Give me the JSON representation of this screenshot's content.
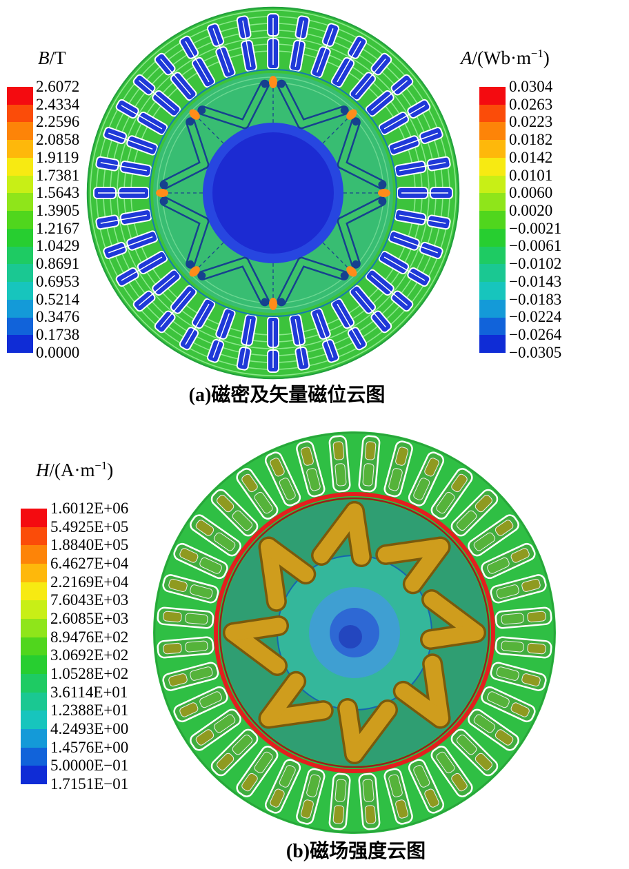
{
  "palette": {
    "bands_top_to_bottom": [
      "#f40b10",
      "#fb4c09",
      "#fd8408",
      "#feb80b",
      "#f7ea12",
      "#c8ef16",
      "#8fe51a",
      "#50d61d",
      "#27ce30",
      "#1ecb63",
      "#1ac892",
      "#17c5bd",
      "#149ad8",
      "#1163da",
      "#0f2cd6"
    ]
  },
  "legends": {
    "b": {
      "symbol": "B",
      "unit_pre": "/T",
      "unit_sup": "",
      "unit_post": "",
      "values": [
        "2.6072",
        "2.4334",
        "2.2596",
        "2.0858",
        "1.9119",
        "1.7381",
        "1.5643",
        "1.3905",
        "1.2167",
        "1.0429",
        "0.8691",
        "0.6953",
        "0.5214",
        "0.3476",
        "0.1738",
        "0.0000"
      ]
    },
    "a": {
      "symbol": "A",
      "unit_pre": "/(Wb·m",
      "unit_sup": "−1",
      "unit_post": ")",
      "values": [
        "0.0304",
        "0.0263",
        "0.0223",
        "0.0182",
        "0.0142",
        "0.0101",
        "0.0060",
        "0.0020",
        "−0.0021",
        "−0.0061",
        "−0.0102",
        "−0.0143",
        "−0.0183",
        "−0.0224",
        "−0.0264",
        "−0.0305"
      ]
    },
    "h": {
      "symbol": "H",
      "unit_pre": "/(A·m",
      "unit_sup": "−1",
      "unit_post": ")",
      "values": [
        "1.6012E+06",
        "5.4925E+05",
        "1.8840E+05",
        "6.4627E+04",
        "2.2169E+04",
        "7.6043E+03",
        "2.6085E+03",
        "8.9476E+02",
        "3.0692E+02",
        "1.0528E+02",
        "3.6114E+01",
        "1.2388E+01",
        "4.2493E+00",
        "1.4576E+00",
        "5.0000E−01",
        "1.7151E−01"
      ]
    }
  },
  "captions": {
    "a": "(a)磁密及矢量磁位云图",
    "b": "(b)磁场强度云图"
  },
  "chart_data": [
    {
      "type": "heatmap",
      "title": "(a)磁密及矢量磁位云图",
      "colorbars": [
        {
          "label": "B/T",
          "ticks_top_to_bottom": [
            "2.6072",
            "2.4334",
            "2.2596",
            "2.0858",
            "1.9119",
            "1.7381",
            "1.5643",
            "1.3905",
            "1.2167",
            "1.0429",
            "0.8691",
            "0.6953",
            "0.5214",
            "0.3476",
            "0.1738",
            "0.0000"
          ]
        },
        {
          "label": "A/(Wb·m⁻¹)",
          "ticks_top_to_bottom": [
            "0.0304",
            "0.0263",
            "0.0223",
            "0.0182",
            "0.0142",
            "0.0101",
            "0.0060",
            "0.0020",
            "−0.0021",
            "−0.0061",
            "−0.0102",
            "−0.0143",
            "−0.0183",
            "−0.0224",
            "−0.0264",
            "−0.0305"
          ]
        }
      ],
      "palette_top_to_bottom": [
        "#f40b10",
        "#fb4c09",
        "#fd8408",
        "#feb80b",
        "#f7ea12",
        "#c8ef16",
        "#8fe51a",
        "#50d61d",
        "#27ce30",
        "#1ecb63",
        "#1ac892",
        "#17c5bd",
        "#149ad8",
        "#1163da",
        "#0f2cd6"
      ],
      "legend_position": "left-and-right"
    },
    {
      "type": "heatmap",
      "title": "(b)磁场强度云图",
      "colorbars": [
        {
          "label": "H/(A·m⁻¹)",
          "ticks_top_to_bottom": [
            "1.6012E+06",
            "5.4925E+05",
            "1.8840E+05",
            "6.4627E+04",
            "2.2169E+04",
            "7.6043E+03",
            "2.6085E+03",
            "8.9476E+02",
            "3.0692E+02",
            "1.0528E+02",
            "3.6114E+01",
            "1.2388E+01",
            "4.2493E+00",
            "1.4576E+00",
            "5.0000E−01",
            "1.7151E−01"
          ]
        }
      ],
      "palette_top_to_bottom": [
        "#f40b10",
        "#fb4c09",
        "#fd8408",
        "#feb80b",
        "#f7ea12",
        "#c8ef16",
        "#8fe51a",
        "#50d61d",
        "#27ce30",
        "#1ecb63",
        "#1ac892",
        "#17c5bd",
        "#149ad8",
        "#1163da",
        "#0f2cd6"
      ],
      "legend_position": "left"
    }
  ]
}
